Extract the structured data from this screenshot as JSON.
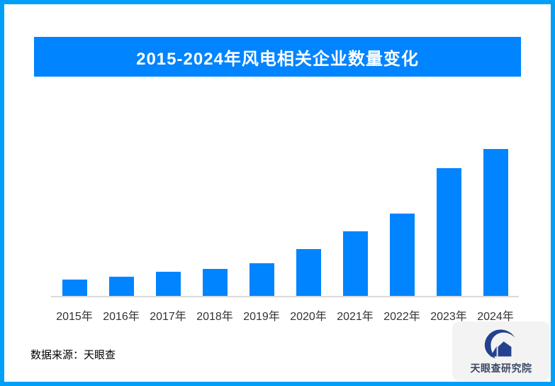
{
  "frame": {
    "border_color": "#00A0F8",
    "background_color": "#FFFFFF"
  },
  "title_banner": {
    "text": "2015-2024年风电相关企业数量变化",
    "bg_color": "#0084FF",
    "text_color": "#FFFFFF"
  },
  "chart_data": {
    "type": "bar",
    "title": "2015-2024年风电相关企业数量变化",
    "categories": [
      "2015年",
      "2016年",
      "2017年",
      "2018年",
      "2019年",
      "2020年",
      "2021年",
      "2022年",
      "2023年",
      "2024年"
    ],
    "values": [
      11,
      13,
      16.5,
      18.5,
      22,
      32,
      44,
      56,
      87,
      100
    ],
    "value_note": "y-axis has no tick labels; values are relative bar heights as % of the 2024 bar",
    "xlabel": "",
    "ylabel": "",
    "grid": false,
    "legend": "none",
    "y_axis_labels_visible": false,
    "bar_color": "#0084FF",
    "axis_line_color": "#D9D9D9",
    "tick_label_color": "#333333"
  },
  "footer": {
    "source_text": "数据来源：天眼查"
  },
  "logo_card": {
    "name": "天眼查研究院",
    "bg_color": "#F3F3F3",
    "logo_color": "#24418E",
    "text_color": "#3C4966"
  }
}
